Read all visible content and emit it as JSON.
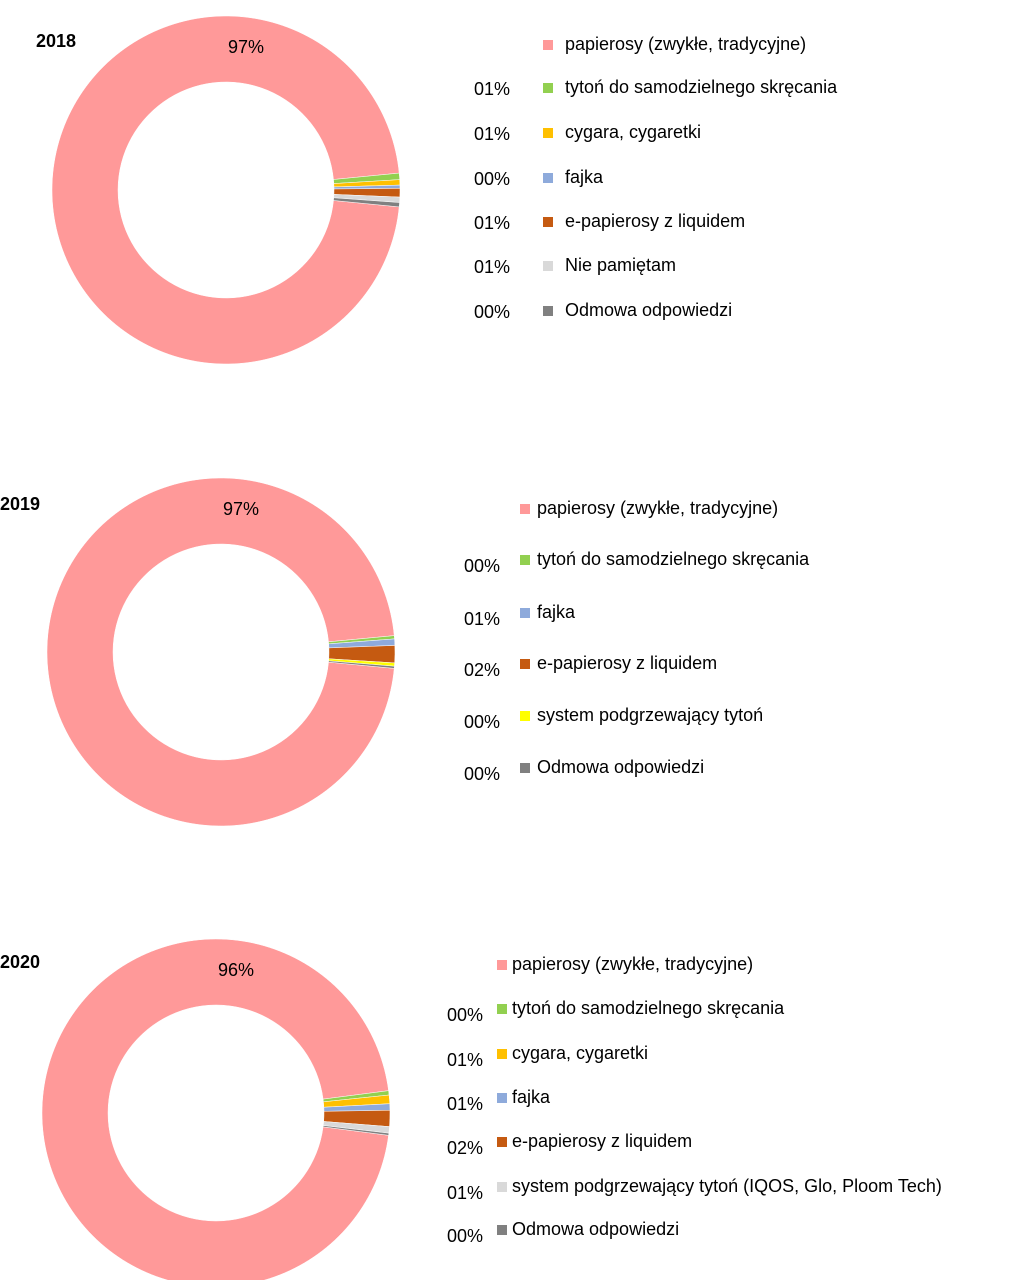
{
  "chart_data": [
    {
      "type": "donut",
      "title": "2018",
      "categories": [
        "papierosy (zwykłe, tradycyjne)",
        "tytoń do samodzielnego skręcania",
        "cygara, cygaretki",
        "fajka",
        "e-papierosy z liquidem",
        "Nie pamiętam",
        "Odmowa odpowiedzi"
      ],
      "values": [
        97,
        0.6,
        0.5,
        0.3,
        0.8,
        0.5,
        0.4
      ],
      "value_labels": [
        "97%",
        "01%",
        "01%",
        "00%",
        "01%",
        "01%",
        "00%"
      ],
      "colors": [
        "#ff9999",
        "#92d050",
        "#ffc000",
        "#8eaadb",
        "#c55a11",
        "#d9d9d9",
        "#808080"
      ]
    },
    {
      "type": "donut",
      "title": "2019",
      "categories": [
        "papierosy (zwykłe, tradycyjne)",
        "tytoń do samodzielnego skręcania",
        "fajka",
        "e-papierosy z liquidem",
        "system podgrzewający tytoń",
        "Odmowa odpowiedzi"
      ],
      "values": [
        97,
        0.3,
        0.6,
        1.6,
        0.3,
        0.2
      ],
      "value_labels": [
        "97%",
        "00%",
        "01%",
        "02%",
        "00%",
        "00%"
      ],
      "colors": [
        "#ff9999",
        "#92d050",
        "#8eaadb",
        "#c55a11",
        "#ffff00",
        "#808080"
      ]
    },
    {
      "type": "donut",
      "title": "2020",
      "categories": [
        "papierosy (zwykłe, tradycyjne)",
        "tytoń do samodzielnego skręcania",
        "cygara, cygaretki",
        "fajka",
        "e-papierosy z liquidem",
        "system podgrzewający tytoń (IQOS, Glo, Ploom Tech)",
        "Odmowa odpowiedzi"
      ],
      "values": [
        96,
        0.4,
        0.8,
        0.6,
        1.5,
        0.6,
        0.2
      ],
      "value_labels": [
        "96%",
        "00%",
        "01%",
        "01%",
        "02%",
        "01%",
        "00%"
      ],
      "colors": [
        "#ff9999",
        "#92d050",
        "#ffc000",
        "#8eaadb",
        "#c55a11",
        "#d9d9d9",
        "#808080"
      ]
    }
  ]
}
